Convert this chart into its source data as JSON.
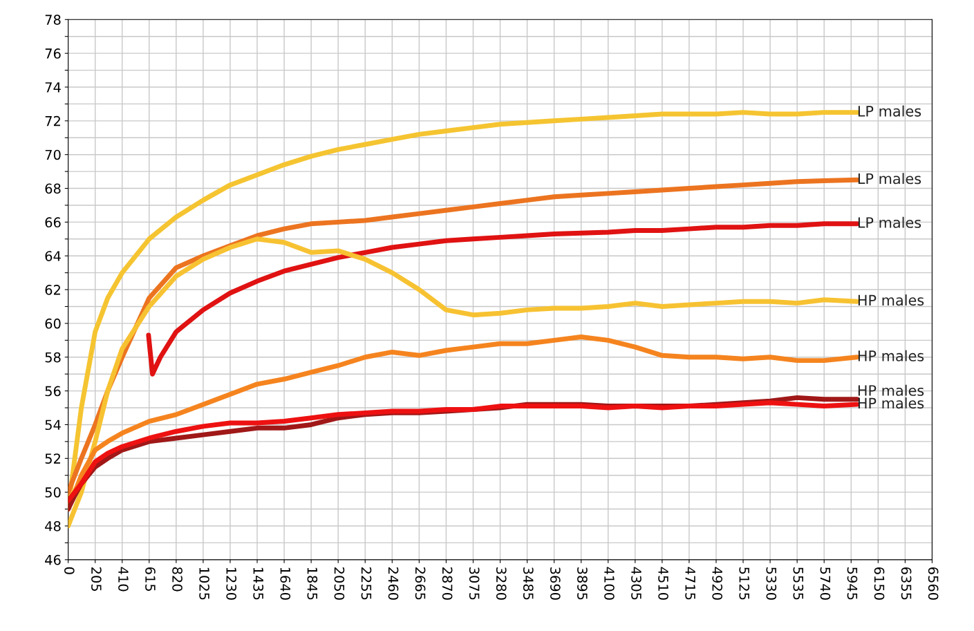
{
  "chart_data": {
    "type": "line",
    "legend": false,
    "grid": true,
    "marker": "none",
    "line_style": "solid",
    "xlim": [
      0,
      6560
    ],
    "ylim": [
      46,
      78
    ],
    "xticks": [
      0,
      205,
      410,
      615,
      820,
      1025,
      1230,
      1435,
      1640,
      1845,
      2050,
      2255,
      2460,
      2665,
      2870,
      3075,
      3280,
      3485,
      3690,
      3895,
      4100,
      4305,
      4510,
      4715,
      4920,
      5125,
      5330,
      5535,
      5740,
      5945,
      6150,
      6355,
      6560
    ],
    "yticks": [
      46,
      {
        "value": 47,
        "label": null
      },
      48,
      {
        "value": 49,
        "label": null
      },
      50,
      {
        "value": 51,
        "label": null
      },
      52,
      {
        "value": 53,
        "label": null
      },
      54,
      {
        "value": 55,
        "label": null
      },
      56,
      {
        "value": 57,
        "label": null
      },
      58,
      {
        "value": 59,
        "label": null
      },
      60,
      {
        "value": 61,
        "label": null
      },
      62,
      {
        "value": 63,
        "label": null
      },
      64,
      {
        "value": 65,
        "label": null
      },
      66,
      {
        "value": 67,
        "label": null
      },
      68,
      {
        "value": 69,
        "label": null
      },
      70,
      {
        "value": 71,
        "label": null
      },
      72,
      {
        "value": 73,
        "label": null
      },
      74,
      {
        "value": 75,
        "label": null
      },
      76,
      {
        "value": 77,
        "label": null
      },
      78
    ],
    "x": [
      0,
      50,
      100,
      205,
      300,
      410,
      615,
      820,
      1025,
      1230,
      1435,
      1640,
      1845,
      2050,
      2255,
      2460,
      2665,
      2870,
      3075,
      3280,
      3485,
      3690,
      3895,
      4100,
      4305,
      4510,
      4715,
      4920,
      5125,
      5330,
      5535,
      5740,
      5990
    ],
    "series": [
      {
        "name": "LP males",
        "color": "#f5c431",
        "values": [
          49,
          52,
          55,
          59.5,
          61.5,
          63,
          65,
          66.3,
          67.3,
          68.2,
          68.8,
          69.4,
          69.9,
          70.3,
          70.6,
          70.9,
          71.2,
          71.4,
          71.6,
          71.8,
          71.9,
          72.0,
          72.1,
          72.2,
          72.3,
          72.4,
          72.4,
          72.4,
          72.5,
          72.4,
          72.4,
          72.5,
          72.5
        ]
      },
      {
        "name": "LP males",
        "color": "#ec7420",
        "values": [
          50,
          51,
          52,
          54,
          56,
          58,
          61.5,
          63.3,
          64,
          64.6,
          65.2,
          65.6,
          65.9,
          66.0,
          66.1,
          66.3,
          66.5,
          66.7,
          66.9,
          67.1,
          67.3,
          67.5,
          67.6,
          67.7,
          67.8,
          67.9,
          68.0,
          68.1,
          68.2,
          68.3,
          68.4,
          68.45,
          68.5
        ]
      },
      {
        "name": "LP males",
        "color": "#e01212",
        "x": [
          610,
          640,
          700,
          820,
          1025,
          1230,
          1435,
          1640,
          1845,
          2050,
          2255,
          2460,
          2665,
          2870,
          3075,
          3280,
          3485,
          3690,
          3895,
          4100,
          4305,
          4510,
          4715,
          4920,
          5125,
          5330,
          5535,
          5740,
          5990
        ],
        "values": [
          59.3,
          57,
          58,
          59.5,
          60.8,
          61.8,
          62.5,
          63.1,
          63.5,
          63.9,
          64.2,
          64.5,
          64.7,
          64.9,
          65.0,
          65.1,
          65.2,
          65.3,
          65.35,
          65.4,
          65.5,
          65.5,
          65.6,
          65.7,
          65.7,
          65.8,
          65.8,
          65.9,
          65.9
        ]
      },
      {
        "name": "HP males",
        "color": "#f7c232",
        "values": [
          48,
          49,
          50,
          53,
          56,
          58.5,
          61,
          62.8,
          63.8,
          64.5,
          65,
          64.8,
          64.2,
          64.3,
          63.8,
          63,
          62,
          60.8,
          60.5,
          60.6,
          60.8,
          60.9,
          60.9,
          61.0,
          61.2,
          61.0,
          61.1,
          61.2,
          61.3,
          61.3,
          61.2,
          61.4,
          61.3
        ]
      },
      {
        "name": "HP males",
        "color": "#f5841f",
        "values": [
          49,
          50,
          51,
          52.5,
          53,
          53.5,
          54.2,
          54.6,
          55.2,
          55.8,
          56.4,
          56.7,
          57.1,
          57.5,
          58,
          58.3,
          58.1,
          58.4,
          58.6,
          58.8,
          58.8,
          59,
          59.2,
          59.0,
          58.6,
          58.1,
          58.0,
          58.0,
          57.9,
          58.0,
          57.8,
          57.8,
          58.0
        ]
      },
      {
        "name": "HP males",
        "color": "#a01818",
        "values": [
          49,
          49.8,
          50.5,
          51.5,
          52,
          52.5,
          53,
          53.2,
          53.4,
          53.6,
          53.8,
          53.8,
          54.0,
          54.4,
          54.6,
          54.7,
          54.7,
          54.8,
          54.9,
          55.0,
          55.2,
          55.2,
          55.2,
          55.1,
          55.1,
          55.1,
          55.1,
          55.2,
          55.3,
          55.4,
          55.6,
          55.5,
          55.5
        ]
      },
      {
        "name": "HP males",
        "color": "#ee1111",
        "values": [
          49.5,
          50,
          50.5,
          51.8,
          52.3,
          52.7,
          53.2,
          53.6,
          53.9,
          54.1,
          54.1,
          54.2,
          54.4,
          54.6,
          54.7,
          54.8,
          54.8,
          54.9,
          54.9,
          55.1,
          55.1,
          55.1,
          55.1,
          55.0,
          55.1,
          55.0,
          55.1,
          55.1,
          55.2,
          55.3,
          55.2,
          55.1,
          55.2
        ]
      }
    ]
  }
}
